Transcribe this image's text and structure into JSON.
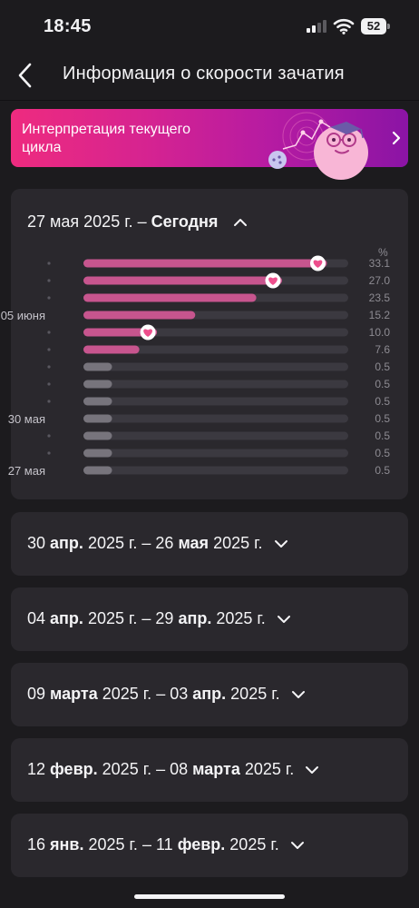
{
  "status_bar": {
    "time": "18:45",
    "battery": "52"
  },
  "header": {
    "title": "Информация о скорости зачатия"
  },
  "banner": {
    "text": "Интерпретация текущего цикла"
  },
  "current_period": {
    "label_start": "27 мая 2025 г.",
    "label_sep": " – ",
    "label_end": "Сегодня",
    "unit": "%"
  },
  "chart_data": {
    "type": "bar",
    "orientation": "horizontal",
    "categories": [
      "",
      "",
      "",
      "05 июня",
      "",
      "",
      "",
      "",
      "",
      "30 мая",
      "",
      "",
      "27 мая"
    ],
    "values": [
      33.1,
      27.0,
      23.5,
      15.2,
      10.0,
      7.6,
      0.5,
      0.5,
      0.5,
      0.5,
      0.5,
      0.5,
      0.5
    ],
    "value_labels": [
      "33.1",
      "27.0",
      "23.5",
      "15.2",
      "10.0",
      "7.6",
      "0.5",
      "0.5",
      "0.5",
      "0.5",
      "0.5",
      "0.5",
      "0.5"
    ],
    "markers": [
      true,
      true,
      false,
      false,
      true,
      false,
      false,
      false,
      false,
      false,
      false,
      false,
      false
    ],
    "xlim": [
      0,
      36
    ],
    "colors": {
      "high": "#c7558e",
      "low": "#77747c",
      "track": "#3b3940",
      "marker": "#ee4f8d"
    }
  },
  "periods": [
    {
      "start_day": "30",
      "start_month": "апр.",
      "start_year": "2025 г.",
      "sep": "–",
      "end_day": "26",
      "end_month": "мая",
      "end_year": "2025 г."
    },
    {
      "start_day": "04",
      "start_month": "апр.",
      "start_year": "2025 г.",
      "sep": "–",
      "end_day": "29",
      "end_month": "апр.",
      "end_year": "2025 г."
    },
    {
      "start_day": "09",
      "start_month": "марта",
      "start_year": "2025 г.",
      "sep": "–",
      "end_day": "03",
      "end_month": "апр.",
      "end_year": "2025 г."
    },
    {
      "start_day": "12",
      "start_month": "февр.",
      "start_year": "2025 г.",
      "sep": "–",
      "end_day": "08",
      "end_month": "марта",
      "end_year": "2025 г."
    },
    {
      "start_day": "16",
      "start_month": "янв.",
      "start_year": "2025 г.",
      "sep": "–",
      "end_day": "11",
      "end_month": "февр.",
      "end_year": "2025 г."
    }
  ]
}
